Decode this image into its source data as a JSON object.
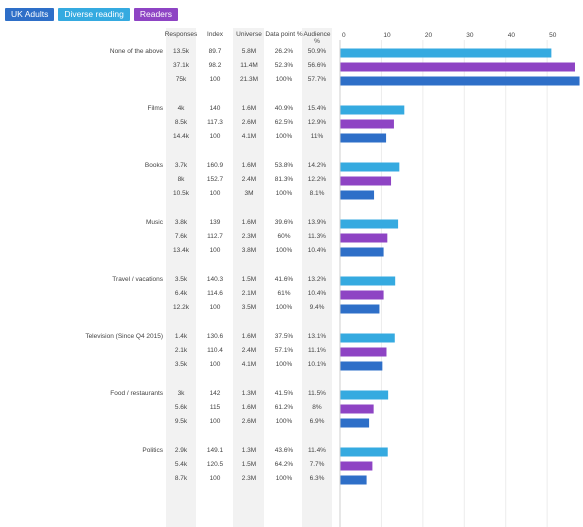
{
  "legend": [
    {
      "label": "UK Adults",
      "color": "#2e6fc8"
    },
    {
      "label": "Diverse reading",
      "color": "#35aae0"
    },
    {
      "label": "Readers",
      "color": "#8e44c4"
    }
  ],
  "columns": [
    "Responses",
    "Index",
    "Universe",
    "Data point %",
    "Audience %"
  ],
  "chart_data": {
    "type": "bar",
    "orientation": "horizontal",
    "xlim": [
      0,
      56
    ],
    "ticks": [
      "0",
      "10",
      "20",
      "30",
      "40",
      "50"
    ],
    "groups": [
      {
        "label": "None of the above",
        "rows": [
          {
            "series": "Diverse reading",
            "responses": "13.5k",
            "index": "89.7",
            "universe": "5.8M",
            "data_point": "26.2%",
            "audience": "50.9%",
            "value": 50.9
          },
          {
            "series": "Readers",
            "responses": "37.1k",
            "index": "98.2",
            "universe": "11.4M",
            "data_point": "52.3%",
            "audience": "56.6%",
            "value": 56.6
          },
          {
            "series": "UK Adults",
            "responses": "75k",
            "index": "100",
            "universe": "21.3M",
            "data_point": "100%",
            "audience": "57.7%",
            "value": 57.7
          }
        ]
      },
      {
        "label": "Films",
        "rows": [
          {
            "series": "Diverse reading",
            "responses": "4k",
            "index": "140",
            "universe": "1.6M",
            "data_point": "40.9%",
            "audience": "15.4%",
            "value": 15.4
          },
          {
            "series": "Readers",
            "responses": "8.5k",
            "index": "117.3",
            "universe": "2.6M",
            "data_point": "62.5%",
            "audience": "12.9%",
            "value": 12.9
          },
          {
            "series": "UK Adults",
            "responses": "14.4k",
            "index": "100",
            "universe": "4.1M",
            "data_point": "100%",
            "audience": "11%",
            "value": 11
          }
        ]
      },
      {
        "label": "Books",
        "rows": [
          {
            "series": "Diverse reading",
            "responses": "3.7k",
            "index": "160.9",
            "universe": "1.6M",
            "data_point": "53.8%",
            "audience": "14.2%",
            "value": 14.2
          },
          {
            "series": "Readers",
            "responses": "8k",
            "index": "152.7",
            "universe": "2.4M",
            "data_point": "81.3%",
            "audience": "12.2%",
            "value": 12.2
          },
          {
            "series": "UK Adults",
            "responses": "10.5k",
            "index": "100",
            "universe": "3M",
            "data_point": "100%",
            "audience": "8.1%",
            "value": 8.1
          }
        ]
      },
      {
        "label": "Music",
        "rows": [
          {
            "series": "Diverse reading",
            "responses": "3.8k",
            "index": "139",
            "universe": "1.6M",
            "data_point": "39.6%",
            "audience": "13.9%",
            "value": 13.9
          },
          {
            "series": "Readers",
            "responses": "7.6k",
            "index": "112.7",
            "universe": "2.3M",
            "data_point": "60%",
            "audience": "11.3%",
            "value": 11.3
          },
          {
            "series": "UK Adults",
            "responses": "13.4k",
            "index": "100",
            "universe": "3.8M",
            "data_point": "100%",
            "audience": "10.4%",
            "value": 10.4
          }
        ]
      },
      {
        "label": "Travel / vacations",
        "rows": [
          {
            "series": "Diverse reading",
            "responses": "3.5k",
            "index": "140.3",
            "universe": "1.5M",
            "data_point": "41.6%",
            "audience": "13.2%",
            "value": 13.2
          },
          {
            "series": "Readers",
            "responses": "6.4k",
            "index": "114.6",
            "universe": "2.1M",
            "data_point": "61%",
            "audience": "10.4%",
            "value": 10.4
          },
          {
            "series": "UK Adults",
            "responses": "12.2k",
            "index": "100",
            "universe": "3.5M",
            "data_point": "100%",
            "audience": "9.4%",
            "value": 9.4
          }
        ]
      },
      {
        "label": "Television (Since Q4 2015)",
        "rows": [
          {
            "series": "Diverse reading",
            "responses": "1.4k",
            "index": "130.6",
            "universe": "1.6M",
            "data_point": "37.5%",
            "audience": "13.1%",
            "value": 13.1
          },
          {
            "series": "Readers",
            "responses": "2.1k",
            "index": "110.4",
            "universe": "2.4M",
            "data_point": "57.1%",
            "audience": "11.1%",
            "value": 11.1
          },
          {
            "series": "UK Adults",
            "responses": "3.5k",
            "index": "100",
            "universe": "4.1M",
            "data_point": "100%",
            "audience": "10.1%",
            "value": 10.1
          }
        ]
      },
      {
        "label": "Food / restaurants",
        "rows": [
          {
            "series": "Diverse reading",
            "responses": "3k",
            "index": "142",
            "universe": "1.3M",
            "data_point": "41.5%",
            "audience": "11.5%",
            "value": 11.5
          },
          {
            "series": "Readers",
            "responses": "5.6k",
            "index": "115",
            "universe": "1.6M",
            "data_point": "61.2%",
            "audience": "8%",
            "value": 8
          },
          {
            "series": "UK Adults",
            "responses": "9.5k",
            "index": "100",
            "universe": "2.6M",
            "data_point": "100%",
            "audience": "6.9%",
            "value": 6.9
          }
        ]
      },
      {
        "label": "Politics",
        "rows": [
          {
            "series": "Diverse reading",
            "responses": "2.9k",
            "index": "149.1",
            "universe": "1.3M",
            "data_point": "43.6%",
            "audience": "11.4%",
            "value": 11.4
          },
          {
            "series": "Readers",
            "responses": "5.4k",
            "index": "120.5",
            "universe": "1.5M",
            "data_point": "64.2%",
            "audience": "7.7%",
            "value": 7.7
          },
          {
            "series": "UK Adults",
            "responses": "8.7k",
            "index": "100",
            "universe": "2.3M",
            "data_point": "100%",
            "audience": "6.3%",
            "value": 6.3
          }
        ]
      }
    ]
  }
}
